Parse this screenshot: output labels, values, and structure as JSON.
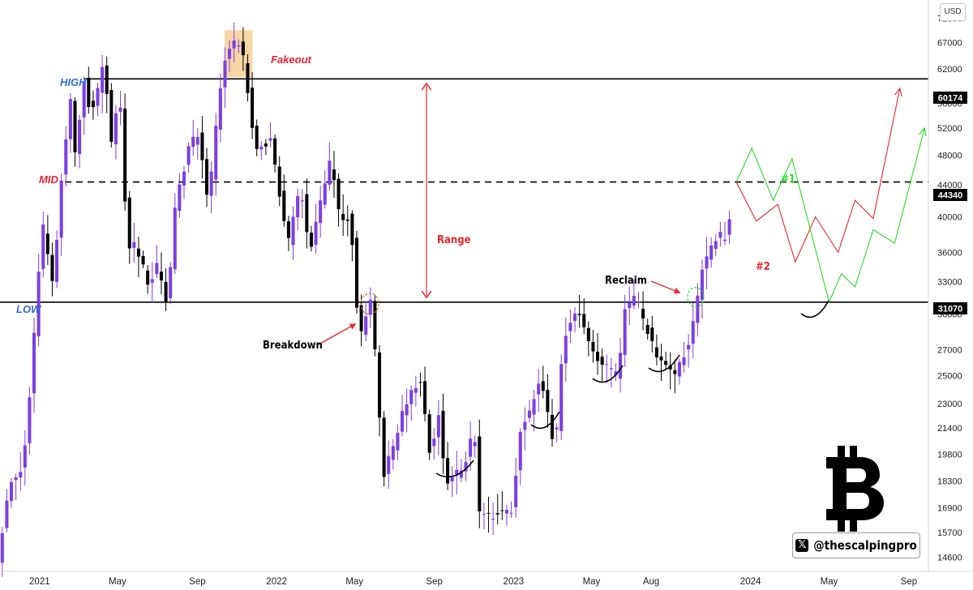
{
  "currency": "USD",
  "watermark": {
    "icon": "x-logo-icon",
    "handle": "@thescalpingpro"
  },
  "logo": "bitcoin-icon",
  "colors": {
    "up": "#7b3fe4",
    "down": "#000000",
    "red": "#e8262f",
    "green": "#2bd92b",
    "blue": "#2f6bd8",
    "highlight": "#f7cf97"
  },
  "chart_data": {
    "type": "candlestick",
    "scale": "log",
    "ylim": [
      14000,
      76000
    ],
    "xlim": [
      "2020-11-01",
      "2024-10-01"
    ],
    "y_ticks": [
      14600,
      15700,
      16900,
      18300,
      19800,
      21400,
      23000,
      25000,
      27000,
      30000,
      33000,
      36000,
      40000,
      44000,
      48000,
      52000,
      56000,
      62000,
      67000,
      72000
    ],
    "x_ticks": [
      {
        "label": "2021",
        "date": "2021-01-01"
      },
      {
        "label": "May",
        "date": "2021-05-01"
      },
      {
        "label": "Sep",
        "date": "2021-09-01"
      },
      {
        "label": "2022",
        "date": "2022-01-01"
      },
      {
        "label": "May",
        "date": "2022-05-01"
      },
      {
        "label": "Sep",
        "date": "2022-09-01"
      },
      {
        "label": "2023",
        "date": "2023-01-01"
      },
      {
        "label": "May",
        "date": "2023-05-01"
      },
      {
        "label": "Aug",
        "date": "2023-08-01"
      },
      {
        "label": "2024",
        "date": "2024-01-01"
      },
      {
        "label": "May",
        "date": "2024-05-01"
      },
      {
        "label": "Sep",
        "date": "2024-09-01"
      }
    ],
    "price_path": [
      [
        "2020-11-01",
        14500
      ],
      [
        "2020-11-20",
        18300
      ],
      [
        "2020-12-10",
        19000
      ],
      [
        "2020-12-25",
        26500
      ],
      [
        "2021-01-08",
        39500
      ],
      [
        "2021-01-25",
        32500
      ],
      [
        "2021-02-08",
        46000
      ],
      [
        "2021-02-21",
        56500
      ],
      [
        "2021-03-01",
        47500
      ],
      [
        "2021-03-14",
        60000
      ],
      [
        "2021-03-25",
        53500
      ],
      [
        "2021-04-13",
        63500
      ],
      [
        "2021-04-25",
        50000
      ],
      [
        "2021-05-08",
        58000
      ],
      [
        "2021-05-19",
        37000
      ],
      [
        "2021-06-01",
        36500
      ],
      [
        "2021-06-20",
        33000
      ],
      [
        "2021-07-05",
        34500
      ],
      [
        "2021-07-20",
        30500
      ],
      [
        "2021-08-01",
        41000
      ],
      [
        "2021-08-22",
        49000
      ],
      [
        "2021-09-06",
        51500
      ],
      [
        "2021-09-21",
        41000
      ],
      [
        "2021-10-06",
        55000
      ],
      [
        "2021-10-20",
        65500
      ],
      [
        "2021-11-10",
        67500
      ],
      [
        "2021-11-26",
        54000
      ],
      [
        "2021-12-04",
        49000
      ],
      [
        "2021-12-27",
        50500
      ],
      [
        "2022-01-21",
        36500
      ],
      [
        "2022-02-10",
        44000
      ],
      [
        "2022-02-24",
        36000
      ],
      [
        "2022-03-29",
        47500
      ],
      [
        "2022-04-11",
        40000
      ],
      [
        "2022-04-28",
        40000
      ],
      [
        "2022-05-12",
        28000
      ],
      [
        "2022-05-30",
        31500
      ],
      [
        "2022-06-18",
        18500
      ],
      [
        "2022-07-01",
        20000
      ],
      [
        "2022-07-28",
        23800
      ],
      [
        "2022-08-14",
        24500
      ],
      [
        "2022-08-29",
        19800
      ],
      [
        "2022-09-12",
        22500
      ],
      [
        "2022-09-21",
        18300
      ],
      [
        "2022-10-20",
        19000
      ],
      [
        "2022-11-05",
        21400
      ],
      [
        "2022-11-12",
        16500
      ],
      [
        "2022-12-31",
        16600
      ],
      [
        "2023-01-15",
        21000
      ],
      [
        "2023-02-16",
        24800
      ],
      [
        "2023-03-10",
        20000
      ],
      [
        "2023-03-22",
        28000
      ],
      [
        "2023-04-14",
        30500
      ],
      [
        "2023-05-12",
        26200
      ],
      [
        "2023-06-15",
        25000
      ],
      [
        "2023-06-25",
        30500
      ],
      [
        "2023-07-13",
        31500
      ],
      [
        "2023-07-24",
        29200
      ],
      [
        "2023-08-17",
        26200
      ],
      [
        "2023-09-11",
        25200
      ],
      [
        "2023-10-01",
        27500
      ],
      [
        "2023-10-24",
        34500
      ],
      [
        "2023-11-09",
        37500
      ],
      [
        "2023-11-30",
        38000
      ],
      [
        "2023-12-08",
        44000
      ]
    ],
    "levels": [
      {
        "name": "HIGH",
        "value": 60174,
        "label": "60174",
        "style": "solid"
      },
      {
        "name": "MID",
        "value": 44340,
        "label": "44340",
        "style": "dashed"
      },
      {
        "name": "LOW",
        "value": 31070,
        "label": "31070",
        "style": "solid"
      }
    ],
    "annotations": {
      "fakeout": "Fakeout",
      "range": "Range",
      "breakdown": "Breakdown",
      "reclaim": "Reclaim",
      "path1": "#1",
      "path2": "#2"
    },
    "projection_1": [
      [
        "2023-12-10",
        44340
      ],
      [
        "2024-01-03",
        49000
      ],
      [
        "2024-02-05",
        42000
      ],
      [
        "2024-03-05",
        47500
      ],
      [
        "2024-05-01",
        31070
      ],
      [
        "2024-05-20",
        33800
      ],
      [
        "2024-06-10",
        32500
      ],
      [
        "2024-07-08",
        38500
      ],
      [
        "2024-08-10",
        37000
      ],
      [
        "2024-09-25",
        52000
      ]
    ],
    "projection_2": [
      [
        "2023-12-10",
        44340
      ],
      [
        "2024-01-10",
        39500
      ],
      [
        "2024-02-12",
        41500
      ],
      [
        "2024-03-10",
        35000
      ],
      [
        "2024-04-10",
        40000
      ],
      [
        "2024-05-15",
        36000
      ],
      [
        "2024-06-10",
        42000
      ],
      [
        "2024-07-08",
        39800
      ],
      [
        "2024-08-18",
        58500
      ]
    ]
  }
}
